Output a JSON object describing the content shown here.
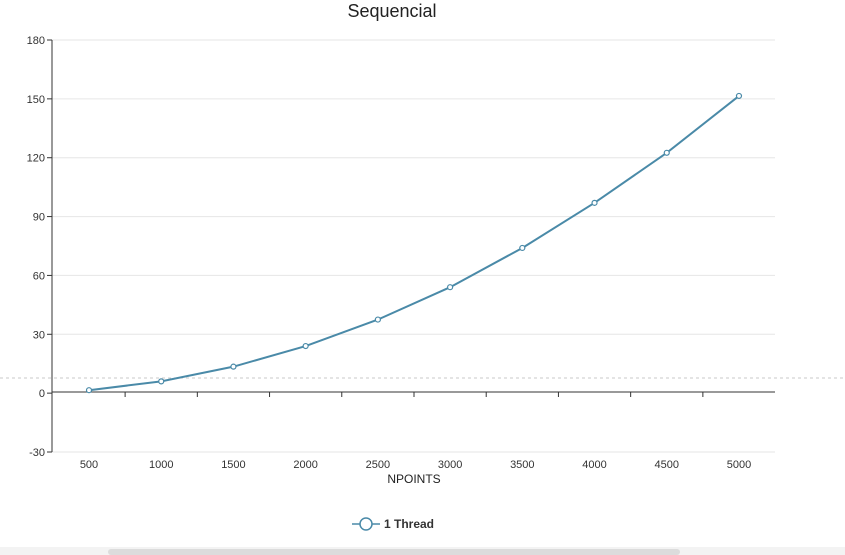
{
  "chart_data": {
    "type": "line",
    "title": "Sequencial",
    "xlabel": "NPOINTS",
    "ylabel": "",
    "x": [
      500,
      1000,
      1500,
      2000,
      2500,
      3000,
      3500,
      4000,
      4500,
      5000
    ],
    "x_tick_labels": [
      "500",
      "1000",
      "1500",
      "2000",
      "2500",
      "3000",
      "3500",
      "4000",
      "4500",
      "5000"
    ],
    "y_ticks": [
      -30,
      0,
      30,
      60,
      90,
      120,
      150,
      180
    ],
    "ylim": [
      -30,
      180
    ],
    "grid": true,
    "legend_position": "bottom",
    "series": [
      {
        "name": "1 Thread",
        "color": "#4a8aa8",
        "values": [
          1.5,
          6,
          13.5,
          24,
          37.5,
          54,
          74,
          97,
          122.5,
          151.5
        ]
      }
    ]
  }
}
